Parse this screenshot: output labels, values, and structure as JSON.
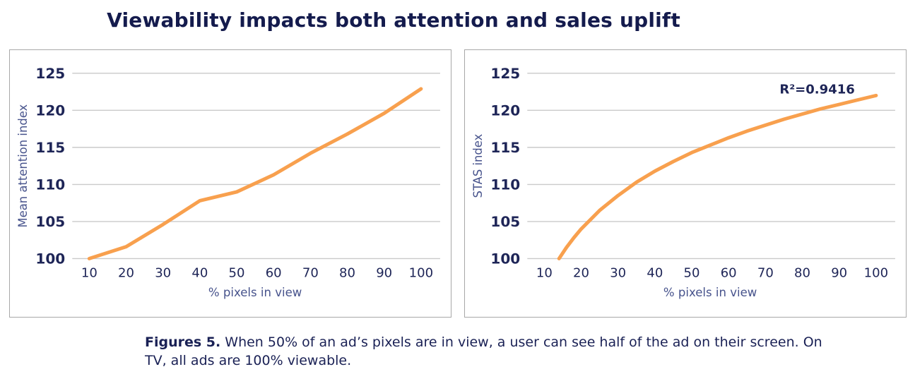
{
  "title": "Viewability impacts both attention and sales uplift",
  "caption": {
    "label": "Figures 5.",
    "text": " When 50% of an ad’s pixels are in view, a user can see half of the ad on their screen. On TV, all ads are 100% viewable."
  },
  "colors": {
    "title_navy": "#141B4D",
    "tick_navy": "#1E2557",
    "axis_slate": "#47538C",
    "line_orange": "#F8A04E",
    "gridline": "#CACACA",
    "panel_border": "#A8A8A8",
    "background": "#FFFFFF"
  },
  "chart_data": [
    {
      "type": "line",
      "name": "mean-attention-by-viewability",
      "title": "",
      "xlabel": "% pixels in view",
      "ylabel": "Mean attention index",
      "xticks": [
        10,
        20,
        30,
        40,
        50,
        60,
        70,
        80,
        90,
        100
      ],
      "yticks": [
        100,
        105,
        110,
        115,
        120,
        125
      ],
      "ylim": [
        100,
        125
      ],
      "xlim": [
        10,
        100
      ],
      "grid": true,
      "legend": "none",
      "line_color": "#F8A04E",
      "points": [
        [
          10,
          100
        ],
        [
          20,
          101.6
        ],
        [
          30,
          104.6
        ],
        [
          40,
          107.8
        ],
        [
          50,
          109.0
        ],
        [
          60,
          111.3
        ],
        [
          70,
          114.2
        ],
        [
          80,
          116.8
        ],
        [
          90,
          119.6
        ],
        [
          100,
          122.9
        ]
      ]
    },
    {
      "type": "line",
      "name": "stas-by-viewability",
      "title": "",
      "xlabel": "% pixels in view",
      "ylabel": "STAS index",
      "annotation": "R²=0.9416",
      "xticks": [
        10,
        20,
        30,
        40,
        50,
        60,
        70,
        80,
        90,
        100
      ],
      "yticks": [
        100,
        105,
        110,
        115,
        120,
        125
      ],
      "ylim": [
        100,
        125
      ],
      "xlim": [
        10,
        100
      ],
      "grid": true,
      "legend": "none",
      "line_color": "#F8A04E",
      "points": [
        [
          14,
          100.0
        ],
        [
          16,
          101.5
        ],
        [
          18,
          102.8
        ],
        [
          20,
          104.0
        ],
        [
          25,
          106.5
        ],
        [
          30,
          108.5
        ],
        [
          35,
          110.3
        ],
        [
          40,
          111.8
        ],
        [
          45,
          113.1
        ],
        [
          50,
          114.3
        ],
        [
          55,
          115.3
        ],
        [
          60,
          116.3
        ],
        [
          65,
          117.2
        ],
        [
          70,
          118.0
        ],
        [
          75,
          118.8
        ],
        [
          80,
          119.5
        ],
        [
          85,
          120.2
        ],
        [
          90,
          120.8
        ],
        [
          95,
          121.4
        ],
        [
          100,
          122.0
        ]
      ]
    }
  ]
}
